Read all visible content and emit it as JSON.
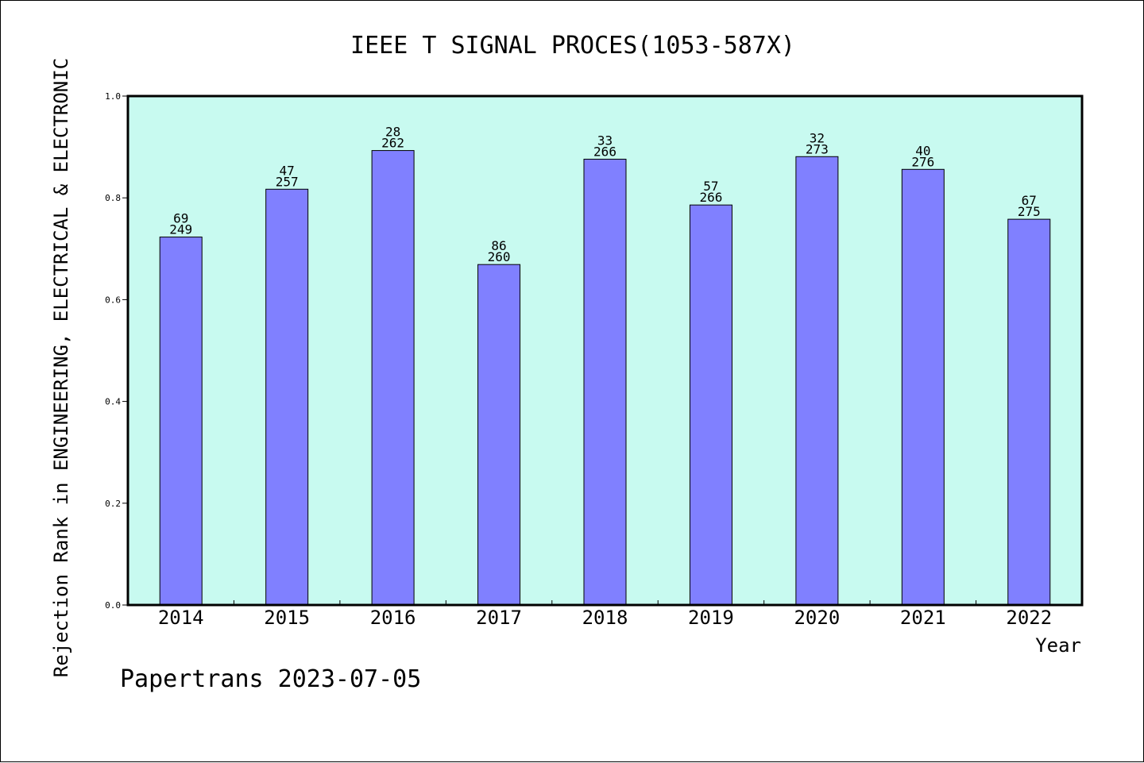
{
  "chart_data": {
    "type": "bar",
    "title": "IEEE T SIGNAL PROCES(1053-587X)",
    "xlabel": "Year",
    "ylabel": "Rejection Rank in ENGINEERING, ELECTRICAL & ELECTRONIC",
    "ylim": [
      0,
      1
    ],
    "yticks": [
      "0.0",
      "0.2",
      "0.4",
      "0.6",
      "0.8",
      "1.0"
    ],
    "grid": false,
    "categories": [
      "2014",
      "2015",
      "2016",
      "2017",
      "2018",
      "2019",
      "2020",
      "2021",
      "2022"
    ],
    "values": [
      0.723,
      0.817,
      0.893,
      0.669,
      0.876,
      0.786,
      0.881,
      0.856,
      0.758
    ],
    "rank": [
      69,
      47,
      28,
      86,
      33,
      57,
      32,
      40,
      67
    ],
    "total": [
      249,
      257,
      262,
      260,
      266,
      266,
      273,
      276,
      275
    ],
    "colors": {
      "plot_background": "#c8faf0",
      "bar_fill": "#8080ff",
      "bar_stroke": "#000000"
    }
  },
  "footer": {
    "watermark": "Papertrans 2023-07-05"
  }
}
